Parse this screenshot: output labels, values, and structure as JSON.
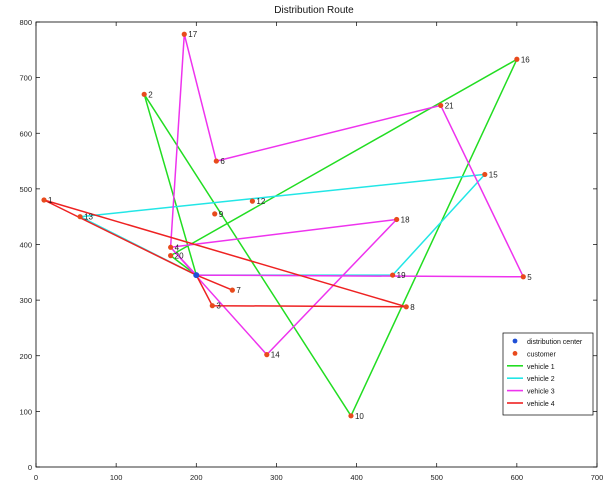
{
  "chart_data": {
    "type": "line",
    "title": "Distribution Route",
    "xlim": [
      0,
      700
    ],
    "ylim": [
      0,
      800
    ],
    "xticks": [
      0,
      100,
      200,
      300,
      400,
      500,
      600,
      700
    ],
    "yticks": [
      0,
      100,
      200,
      300,
      400,
      500,
      600,
      700,
      800
    ],
    "grid": false,
    "legend_position": "bottom-right",
    "legend": [
      {
        "label": "distribution center",
        "kind": "marker",
        "color": "#1f4fd6"
      },
      {
        "label": "customer",
        "kind": "marker",
        "color": "#e84a1c"
      },
      {
        "label": "vehicle 1",
        "kind": "line",
        "color": "#22dd22"
      },
      {
        "label": "vehicle 2",
        "kind": "line",
        "color": "#22e6e6"
      },
      {
        "label": "vehicle 3",
        "kind": "line",
        "color": "#ee33ee"
      },
      {
        "label": "vehicle 4",
        "kind": "line",
        "color": "#ee2222"
      }
    ],
    "center": {
      "label": "",
      "x": 200,
      "y": 345
    },
    "customers": [
      {
        "label": "1",
        "x": 10,
        "y": 480
      },
      {
        "label": "2",
        "x": 135,
        "y": 670
      },
      {
        "label": "3",
        "x": 220,
        "y": 290
      },
      {
        "label": "4",
        "x": 168,
        "y": 395
      },
      {
        "label": "5",
        "x": 608,
        "y": 342
      },
      {
        "label": "6",
        "x": 225,
        "y": 550
      },
      {
        "label": "7",
        "x": 245,
        "y": 318
      },
      {
        "label": "8",
        "x": 462,
        "y": 288
      },
      {
        "label": "9",
        "x": 223,
        "y": 455
      },
      {
        "label": "10",
        "x": 393,
        "y": 92
      },
      {
        "label": "12",
        "x": 270,
        "y": 478
      },
      {
        "label": "13",
        "x": 55,
        "y": 450
      },
      {
        "label": "14",
        "x": 288,
        "y": 202
      },
      {
        "label": "15",
        "x": 560,
        "y": 526
      },
      {
        "label": "16",
        "x": 600,
        "y": 733
      },
      {
        "label": "17",
        "x": 185,
        "y": 778
      },
      {
        "label": "18",
        "x": 450,
        "y": 445
      },
      {
        "label": "19",
        "x": 445,
        "y": 345
      },
      {
        "label": "20",
        "x": 168,
        "y": 380
      },
      {
        "label": "21",
        "x": 505,
        "y": 650
      }
    ],
    "series": [
      {
        "color": "#22dd22",
        "points": [
          [
            200,
            345
          ],
          [
            135,
            670
          ],
          [
            393,
            92
          ],
          [
            600,
            733
          ],
          [
            168,
            380
          ],
          [
            200,
            345
          ]
        ]
      },
      {
        "color": "#22e6e6",
        "points": [
          [
            200,
            345
          ],
          [
            55,
            450
          ],
          [
            560,
            526
          ],
          [
            445,
            345
          ],
          [
            200,
            345
          ]
        ]
      },
      {
        "color": "#ee33ee",
        "points": [
          [
            200,
            345
          ],
          [
            168,
            395
          ],
          [
            450,
            445
          ],
          [
            288,
            202
          ],
          [
            168,
            395
          ],
          [
            185,
            778
          ],
          [
            225,
            550
          ],
          [
            505,
            650
          ],
          [
            608,
            342
          ],
          [
            200,
            345
          ]
        ]
      },
      {
        "color": "#ee2222",
        "points": [
          [
            200,
            345
          ],
          [
            10,
            480
          ],
          [
            462,
            288
          ],
          [
            220,
            290
          ],
          [
            200,
            345
          ],
          [
            245,
            318
          ]
        ]
      }
    ]
  }
}
